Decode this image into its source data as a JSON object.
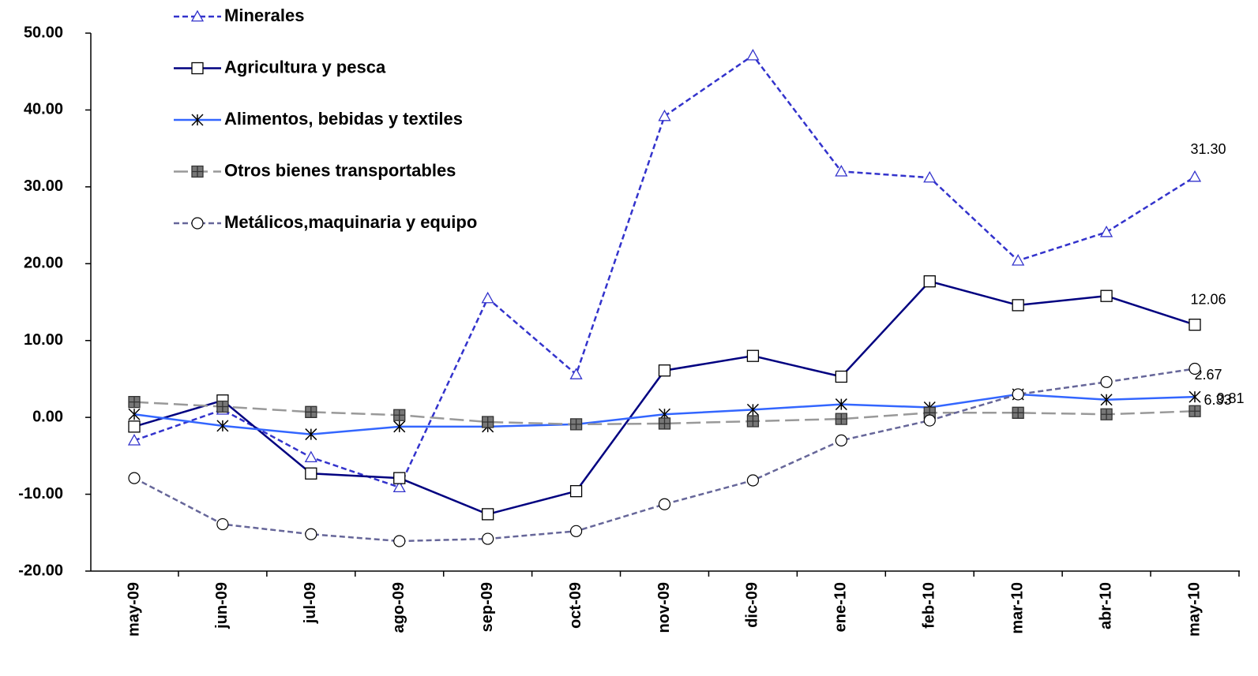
{
  "chart_data": {
    "type": "line",
    "categories": [
      "may-09",
      "jun-09",
      "jul-09",
      "ago-09",
      "sep-09",
      "oct-09",
      "nov-09",
      "dic-09",
      "ene-10",
      "feb-10",
      "mar-10",
      "abr-10",
      "may-10"
    ],
    "ylim": [
      -20,
      50
    ],
    "yticks": [
      {
        "value": -20,
        "label": "-20.00"
      },
      {
        "value": -10,
        "label": "-10.00"
      },
      {
        "value": 0,
        "label": "0.00"
      },
      {
        "value": 10,
        "label": "10.00"
      },
      {
        "value": 20,
        "label": "20.00"
      },
      {
        "value": 30,
        "label": "30.00"
      },
      {
        "value": 40,
        "label": "40.00"
      },
      {
        "value": 50,
        "label": "50.00"
      }
    ],
    "grid": false,
    "legend": "upper left",
    "series": [
      {
        "name": "Minerales",
        "color": "#3333cc",
        "dash": "dashed",
        "marker": "triangle",
        "values": [
          -3.0,
          1.0,
          -5.2,
          -9.1,
          15.5,
          5.6,
          39.2,
          47.1,
          32.0,
          31.2,
          20.4,
          24.1,
          31.3
        ],
        "value_labels": [
          null,
          null,
          null,
          null,
          null,
          null,
          null,
          null,
          null,
          null,
          null,
          null,
          "31.30"
        ]
      },
      {
        "name": "Agricultura y pesca",
        "color": "#000080",
        "dash": "solid",
        "marker": "square",
        "values": [
          -1.2,
          2.2,
          -7.3,
          -7.9,
          -12.6,
          -9.6,
          6.1,
          8.0,
          5.3,
          17.7,
          14.6,
          15.8,
          12.06
        ],
        "value_labels": [
          null,
          null,
          null,
          null,
          null,
          null,
          null,
          null,
          null,
          null,
          null,
          null,
          "12.06"
        ]
      },
      {
        "name": "Alimentos, bebidas y textiles",
        "color": "#3366ff",
        "dash": "solid",
        "marker": "star",
        "values": [
          0.4,
          -1.1,
          -2.2,
          -1.2,
          -1.2,
          -0.9,
          0.4,
          1.0,
          1.7,
          1.3,
          3.0,
          2.3,
          2.67
        ],
        "value_labels": [
          null,
          null,
          null,
          null,
          null,
          null,
          null,
          null,
          null,
          null,
          null,
          null,
          "2.67"
        ]
      },
      {
        "name": "Otros bienes transportables",
        "color": "#999999",
        "dash": "longdash",
        "marker": "plus-square",
        "values": [
          2.0,
          1.4,
          0.7,
          0.3,
          -0.6,
          -0.9,
          -0.8,
          -0.5,
          -0.2,
          0.6,
          0.6,
          0.4,
          0.81
        ],
        "value_labels": [
          null,
          null,
          null,
          null,
          null,
          null,
          null,
          null,
          null,
          null,
          null,
          null,
          "0.81"
        ]
      },
      {
        "name": "Metálicos,maquinaria y equipo",
        "color": "#666699",
        "dash": "dashed",
        "marker": "circle",
        "values": [
          -7.9,
          -13.9,
          -15.2,
          -16.1,
          -15.8,
          -14.8,
          -11.3,
          -8.2,
          -3.0,
          -0.4,
          3.0,
          4.6,
          6.33
        ],
        "value_labels": [
          null,
          null,
          null,
          null,
          null,
          null,
          null,
          null,
          null,
          null,
          null,
          null,
          "6.33"
        ]
      }
    ]
  }
}
